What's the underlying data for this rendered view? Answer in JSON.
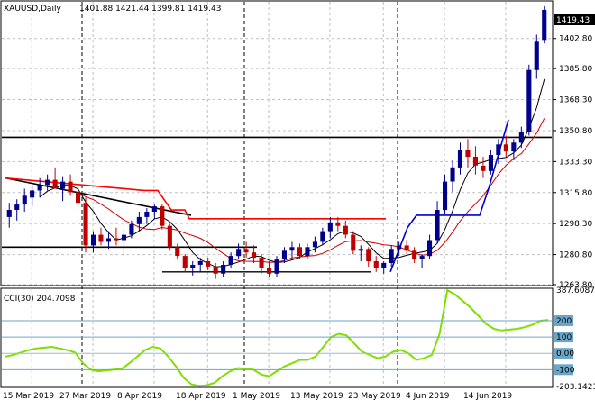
{
  "header": {
    "symbol": "XAUUSD,Daily",
    "ohlc": "1401.88 1421.44 1399.81 1419.43"
  },
  "indicator": {
    "name": "CCI(30) 204.7098",
    "axis_labels": [
      "387.6087",
      "200",
      "100",
      "0.00",
      "-100",
      "-203.1423"
    ]
  },
  "price_axis": {
    "labels": [
      "1402.80",
      "1385.80",
      "1368.30",
      "1350.80",
      "1333.30",
      "1315.80",
      "1298.30",
      "1280.80",
      "1263.80"
    ],
    "current_price": "1419.43"
  },
  "time_axis": {
    "labels": [
      "15 Mar 2019",
      "27 Mar 2019",
      "8 Apr 2019",
      "18 Apr 2019",
      "1 May 2019",
      "13 May 2019",
      "23 May 2019",
      "4 Jun 2019",
      "14 Jun 2019"
    ]
  },
  "colors": {
    "bull": "#00008b",
    "bear": "#c00000",
    "ma_fast": "#000000",
    "ma_red": "#d40000",
    "ma_blue": "#0000cc",
    "band": "#ff0000",
    "cci": "#7fe000",
    "grid": "#c0c0c0",
    "indicator_level": "#6aa6c8"
  },
  "chart_data": [
    {
      "type": "candlestick",
      "title": "XAUUSD,Daily",
      "ylim": [
        1263.8,
        1423.0
      ],
      "candles": [
        [
          1302,
          1310,
          1296,
          1306
        ],
        [
          1306,
          1312,
          1300,
          1309
        ],
        [
          1309,
          1318,
          1305,
          1314
        ],
        [
          1313,
          1320,
          1308,
          1317
        ],
        [
          1317,
          1324,
          1313,
          1320
        ],
        [
          1320,
          1326,
          1317,
          1323
        ],
        [
          1323,
          1330,
          1318,
          1318
        ],
        [
          1318,
          1325,
          1311,
          1322
        ],
        [
          1322,
          1326,
          1314,
          1316
        ],
        [
          1316,
          1320,
          1306,
          1310
        ],
        [
          1310,
          1313,
          1282,
          1286
        ],
        [
          1286,
          1294,
          1282,
          1292
        ],
        [
          1292,
          1296,
          1286,
          1288
        ],
        [
          1288,
          1294,
          1284,
          1290
        ],
        [
          1290,
          1296,
          1286,
          1289
        ],
        [
          1289,
          1295,
          1280,
          1292
        ],
        [
          1292,
          1300,
          1290,
          1298
        ],
        [
          1298,
          1305,
          1294,
          1302
        ],
        [
          1302,
          1307,
          1298,
          1305
        ],
        [
          1305,
          1309,
          1301,
          1308
        ],
        [
          1308,
          1309,
          1295,
          1297
        ],
        [
          1297,
          1298,
          1283,
          1285
        ],
        [
          1285,
          1287,
          1278,
          1280
        ],
        [
          1280,
          1281,
          1271,
          1273
        ],
        [
          1273,
          1277,
          1269,
          1275
        ],
        [
          1275,
          1279,
          1271,
          1277
        ],
        [
          1277,
          1279,
          1272,
          1274
        ],
        [
          1274,
          1276,
          1267,
          1270
        ],
        [
          1270,
          1277,
          1268,
          1275
        ],
        [
          1275,
          1282,
          1273,
          1280
        ],
        [
          1280,
          1287,
          1278,
          1284
        ],
        [
          1284,
          1288,
          1279,
          1282
        ],
        [
          1282,
          1286,
          1276,
          1279
        ],
        [
          1279,
          1281,
          1270,
          1273
        ],
        [
          1273,
          1277,
          1268,
          1270
        ],
        [
          1270,
          1280,
          1268,
          1278
        ],
        [
          1278,
          1285,
          1276,
          1283
        ],
        [
          1283,
          1288,
          1279,
          1285
        ],
        [
          1285,
          1287,
          1278,
          1280
        ],
        [
          1280,
          1287,
          1278,
          1285
        ],
        [
          1285,
          1291,
          1282,
          1288
        ],
        [
          1288,
          1296,
          1286,
          1294
        ],
        [
          1294,
          1302,
          1290,
          1299
        ],
        [
          1299,
          1302,
          1294,
          1297
        ],
        [
          1297,
          1300,
          1290,
          1292
        ],
        [
          1292,
          1294,
          1281,
          1283
        ],
        [
          1283,
          1286,
          1277,
          1284
        ],
        [
          1284,
          1285,
          1274,
          1277
        ],
        [
          1277,
          1280,
          1271,
          1273
        ],
        [
          1273,
          1277,
          1270,
          1276
        ],
        [
          1276,
          1286,
          1274,
          1284
        ],
        [
          1284,
          1288,
          1280,
          1286
        ],
        [
          1286,
          1289,
          1281,
          1283
        ],
        [
          1283,
          1285,
          1276,
          1278
        ],
        [
          1278,
          1281,
          1273,
          1280
        ],
        [
          1280,
          1292,
          1278,
          1289
        ],
        [
          1289,
          1311,
          1287,
          1306
        ],
        [
          1306,
          1326,
          1304,
          1322
        ],
        [
          1322,
          1334,
          1316,
          1330
        ],
        [
          1330,
          1344,
          1326,
          1340
        ],
        [
          1340,
          1346,
          1330,
          1336
        ],
        [
          1336,
          1342,
          1326,
          1331
        ],
        [
          1331,
          1336,
          1324,
          1328
        ],
        [
          1328,
          1340,
          1326,
          1337
        ],
        [
          1337,
          1346,
          1332,
          1343
        ],
        [
          1343,
          1348,
          1336,
          1339
        ],
        [
          1339,
          1346,
          1334,
          1344
        ],
        [
          1344,
          1353,
          1341,
          1350
        ],
        [
          1350,
          1388,
          1348,
          1385
        ],
        [
          1385,
          1405,
          1380,
          1401
        ],
        [
          1402,
          1421,
          1400,
          1419
        ]
      ]
    },
    {
      "type": "line",
      "title": "CCI(30) 204.7098",
      "ylim": [
        -203.1423,
        387.6087
      ],
      "series": [
        {
          "values": [
            -20,
            -10,
            5,
            20,
            30,
            35,
            40,
            30,
            20,
            5,
            -60,
            -100,
            -110,
            -105,
            -100,
            -95,
            -60,
            -20,
            20,
            40,
            30,
            -20,
            -80,
            -150,
            -190,
            -200,
            -195,
            -180,
            -140,
            -110,
            -90,
            -95,
            -100,
            -130,
            -140,
            -110,
            -80,
            -60,
            -40,
            -40,
            -20,
            40,
            100,
            120,
            110,
            60,
            10,
            -10,
            -30,
            -20,
            10,
            20,
            0,
            -40,
            -30,
            -10,
            120,
            387,
            360,
            320,
            280,
            230,
            180,
            150,
            140,
            145,
            150,
            160,
            175,
            200,
            204.7
          ]
        }
      ]
    }
  ]
}
